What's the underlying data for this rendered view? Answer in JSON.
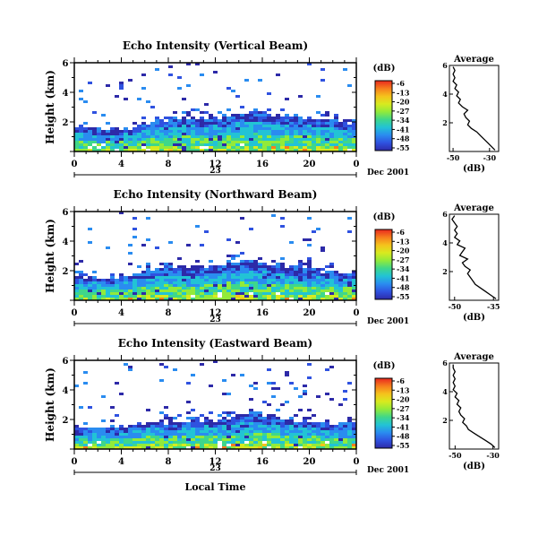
{
  "colorbar": {
    "unit": "(dB)",
    "ticks": [
      "-6",
      "-13",
      "-20",
      "-27",
      "-34",
      "-41",
      "-48",
      "-55"
    ],
    "colors": [
      "#e8281e",
      "#f67d1d",
      "#f5c21c",
      "#d8ea1f",
      "#92ea3a",
      "#3fd78a",
      "#22c3d5",
      "#2a8cf0",
      "#2f52e0",
      "#2d2aa8"
    ]
  },
  "chart_data": [
    {
      "type": "heatmap",
      "title": "Echo Intensity (Vertical Beam)",
      "ylabel": "Height (km)",
      "ylim": [
        0,
        6
      ],
      "xlim": [
        0,
        24
      ],
      "xticks": [
        "0",
        "4",
        "8",
        "12",
        "16",
        "20",
        "0"
      ],
      "day_label": "23",
      "date_label": "Dec 2001",
      "cloud_top_km": [
        1.6,
        1.5,
        1.5,
        1.4,
        1.5,
        1.7,
        1.9,
        2.1,
        2.2,
        2.4,
        2.3,
        2.2,
        2.3,
        2.5,
        2.6,
        2.7,
        2.6,
        2.5,
        2.4,
        2.3,
        2.3,
        2.2,
        2.1,
        2.0
      ],
      "average": {
        "title": "Average",
        "xlabel": "(dB)",
        "xticks": [
          "-50",
          "-30"
        ],
        "xlim": [
          -52,
          -25
        ],
        "yticks": [
          "2",
          "4",
          "6"
        ],
        "ylim": [
          0,
          6
        ],
        "profile_db": [
          -27,
          -29,
          -31,
          -33,
          -35,
          -37,
          -40,
          -42,
          -41,
          -43,
          -44,
          -42,
          -45,
          -47,
          -46,
          -48,
          -47,
          -49,
          -48,
          -50,
          -49,
          -50,
          -49,
          -50
        ]
      }
    },
    {
      "type": "heatmap",
      "title": "Echo Intensity (Northward Beam)",
      "ylabel": "Height (km)",
      "ylim": [
        0,
        6
      ],
      "xlim": [
        0,
        24
      ],
      "xticks": [
        "0",
        "4",
        "8",
        "12",
        "16",
        "20",
        "0"
      ],
      "day_label": "23",
      "date_label": "Dec 2001",
      "cloud_top_km": [
        1.6,
        1.6,
        1.5,
        1.5,
        1.6,
        1.8,
        2.0,
        2.2,
        2.3,
        2.2,
        2.1,
        2.2,
        2.4,
        2.6,
        2.8,
        2.7,
        2.5,
        2.4,
        2.3,
        2.2,
        2.1,
        2.0,
        1.9,
        1.8
      ],
      "average": {
        "title": "Average",
        "xlabel": "(dB)",
        "xticks": [
          "-50",
          "-35"
        ],
        "xlim": [
          -52,
          -33
        ],
        "yticks": [
          "2",
          "4",
          "6"
        ],
        "ylim": [
          0,
          6
        ],
        "profile_db": [
          -34,
          -36,
          -38,
          -40,
          -42,
          -43,
          -44,
          -45,
          -44,
          -46,
          -47,
          -45,
          -48,
          -47,
          -46,
          -49,
          -48,
          -50,
          -49,
          -50,
          -49,
          -50,
          -51,
          -50
        ]
      }
    },
    {
      "type": "heatmap",
      "title": "Echo Intensity (Eastward Beam)",
      "ylabel": "Height (km)",
      "ylim": [
        0,
        6
      ],
      "xlim": [
        0,
        24
      ],
      "xticks": [
        "0",
        "4",
        "8",
        "12",
        "16",
        "20",
        "0"
      ],
      "day_label": "23",
      "date_label": "Dec 2001",
      "xlabel": "Local Time",
      "cloud_top_km": [
        1.3,
        1.4,
        1.5,
        1.6,
        1.5,
        1.6,
        1.8,
        1.9,
        1.7,
        1.8,
        1.9,
        2.0,
        1.9,
        2.1,
        2.3,
        2.4,
        2.3,
        2.2,
        2.0,
        2.0,
        1.9,
        1.8,
        1.7,
        1.7
      ],
      "average": {
        "title": "Average",
        "xlabel": "(dB)",
        "xticks": [
          "-50",
          "-30"
        ],
        "xlim": [
          -53,
          -27
        ],
        "yticks": [
          "2",
          "4",
          "6"
        ],
        "ylim": [
          0,
          6
        ],
        "profile_db": [
          -29,
          -31,
          -34,
          -37,
          -40,
          -43,
          -44,
          -46,
          -45,
          -47,
          -48,
          -47,
          -49,
          -48,
          -50,
          -49,
          -51,
          -50,
          -51,
          -50,
          -51,
          -50,
          -51,
          -51
        ]
      }
    }
  ]
}
